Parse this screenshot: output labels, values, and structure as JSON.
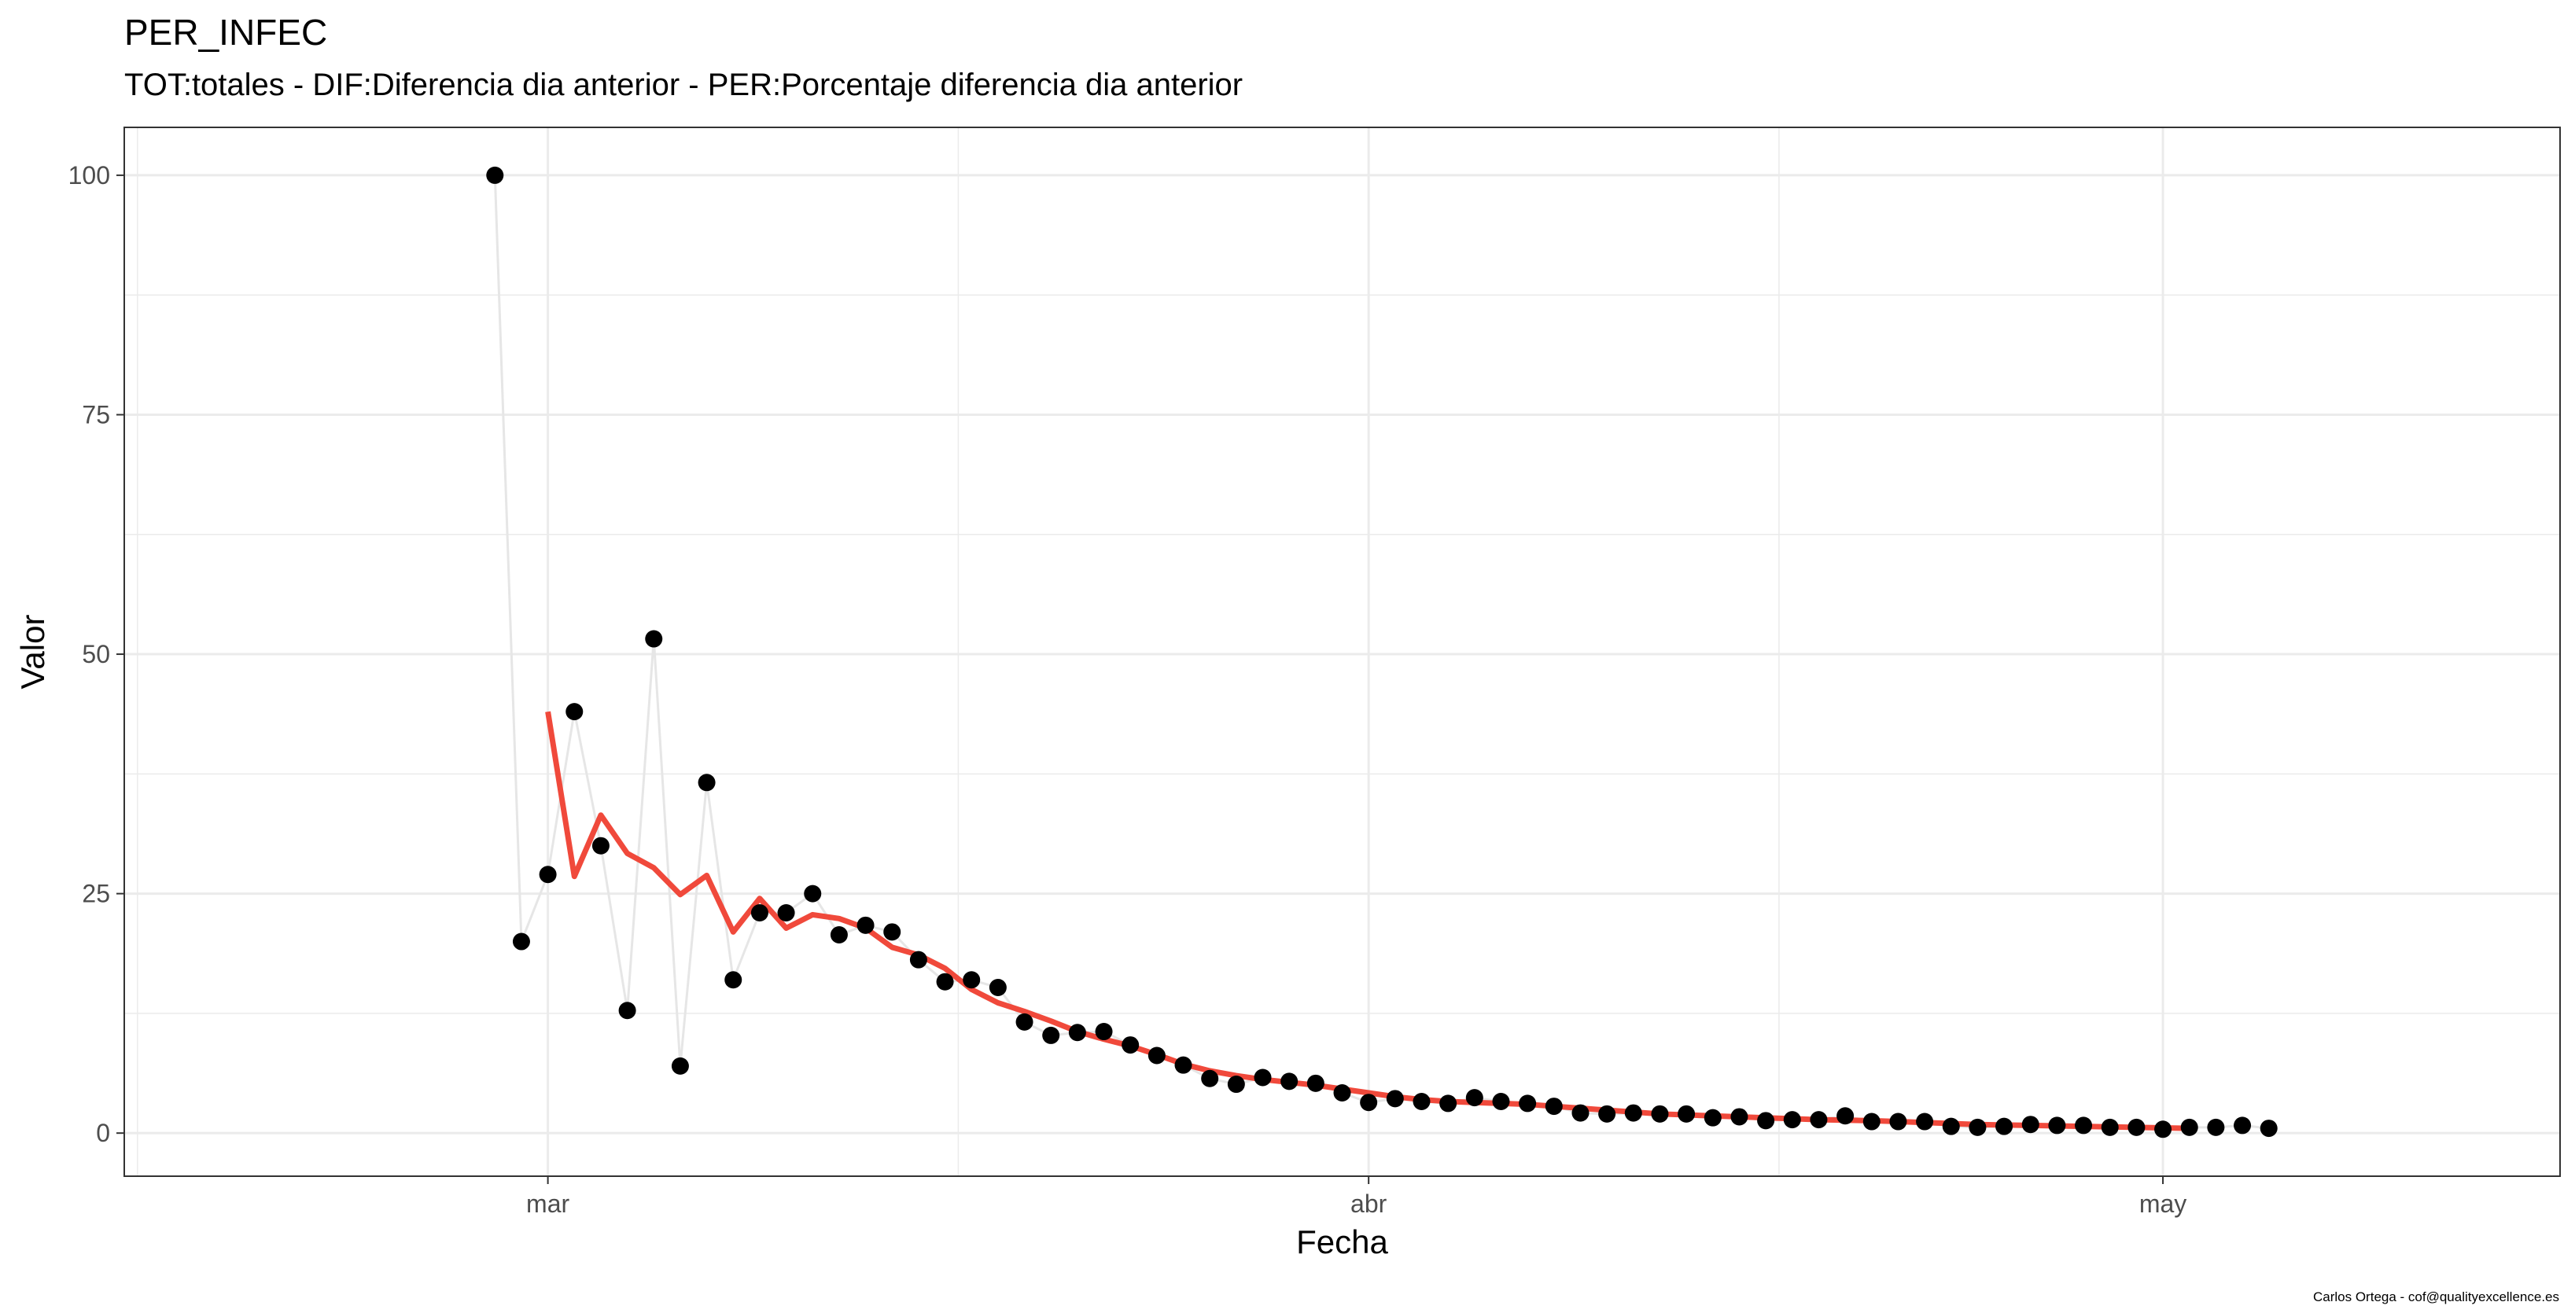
{
  "chart_data": {
    "type": "line",
    "title": "PER_INFEC",
    "subtitle": "TOT:totales - DIF:Diferencia dia anterior - PER:Porcentaje diferencia dia anterior",
    "xlabel": "Fecha",
    "ylabel": "Valor",
    "caption": "Carlos Ortega - cof@qualityexcellence.es",
    "x_ticks": [
      {
        "date": "2020-03-01",
        "label": "mar"
      },
      {
        "date": "2020-04-01",
        "label": "abr"
      },
      {
        "date": "2020-05-01",
        "label": "may"
      }
    ],
    "x_range": [
      "2020-02-14",
      "2020-05-16"
    ],
    "ylim": [
      -4.5,
      105
    ],
    "y_ticks": [
      0,
      25,
      50,
      75,
      100
    ],
    "grid": true,
    "colors": {
      "points": "#000000",
      "raw_line": "#e6e6e6",
      "smooth_line": "#f0493b"
    },
    "series": [
      {
        "kind": "points-with-line",
        "start_date": "2020-02-28",
        "values": [
          100,
          20,
          27,
          44,
          30,
          12.8,
          51.6,
          7,
          36.6,
          16,
          23,
          23,
          25,
          20.7,
          21.7,
          21,
          18.1,
          15.8,
          16,
          15.2,
          11.6,
          10.2,
          10.5,
          10.6,
          9.2,
          8.1,
          7.1,
          5.7,
          5.1,
          5.8,
          5.4,
          5.2,
          4.2,
          3.2,
          3.6,
          3.3,
          3.1,
          3.7,
          3.3,
          3.1,
          2.8,
          2.1,
          2.0,
          2.1,
          2.0,
          2.0,
          1.6,
          1.7,
          1.3,
          1.4,
          1.4,
          1.8,
          1.2,
          1.2,
          1.2,
          0.7,
          0.6,
          0.7,
          0.9,
          0.8,
          0.8,
          0.6,
          0.6,
          0.4,
          0.6,
          0.6,
          0.8,
          0.5
        ]
      },
      {
        "kind": "smooth",
        "start_date": "2020-03-01",
        "values": [
          44,
          26.8,
          33.2,
          29.2,
          27.7,
          24.9,
          26.9,
          21,
          24.5,
          21.4,
          22.8,
          22.4,
          21.4,
          19.4,
          18.6,
          17.2,
          15,
          13.6,
          12.7,
          11.7,
          10.6,
          9.8,
          9.1,
          8.2,
          7.2,
          6.5,
          6.0,
          5.6,
          5.3,
          5.0,
          4.6,
          4.2,
          3.8,
          3.5,
          3.3,
          3.2,
          3.1,
          3.0,
          2.8,
          2.6,
          2.4,
          2.2,
          2.0,
          1.9,
          1.8,
          1.7,
          1.6,
          1.5,
          1.4,
          1.35,
          1.3,
          1.2,
          1.1,
          1.0,
          0.9,
          0.85,
          0.8,
          0.75,
          0.7,
          0.65,
          0.6,
          0.55,
          0.5
        ]
      }
    ]
  }
}
